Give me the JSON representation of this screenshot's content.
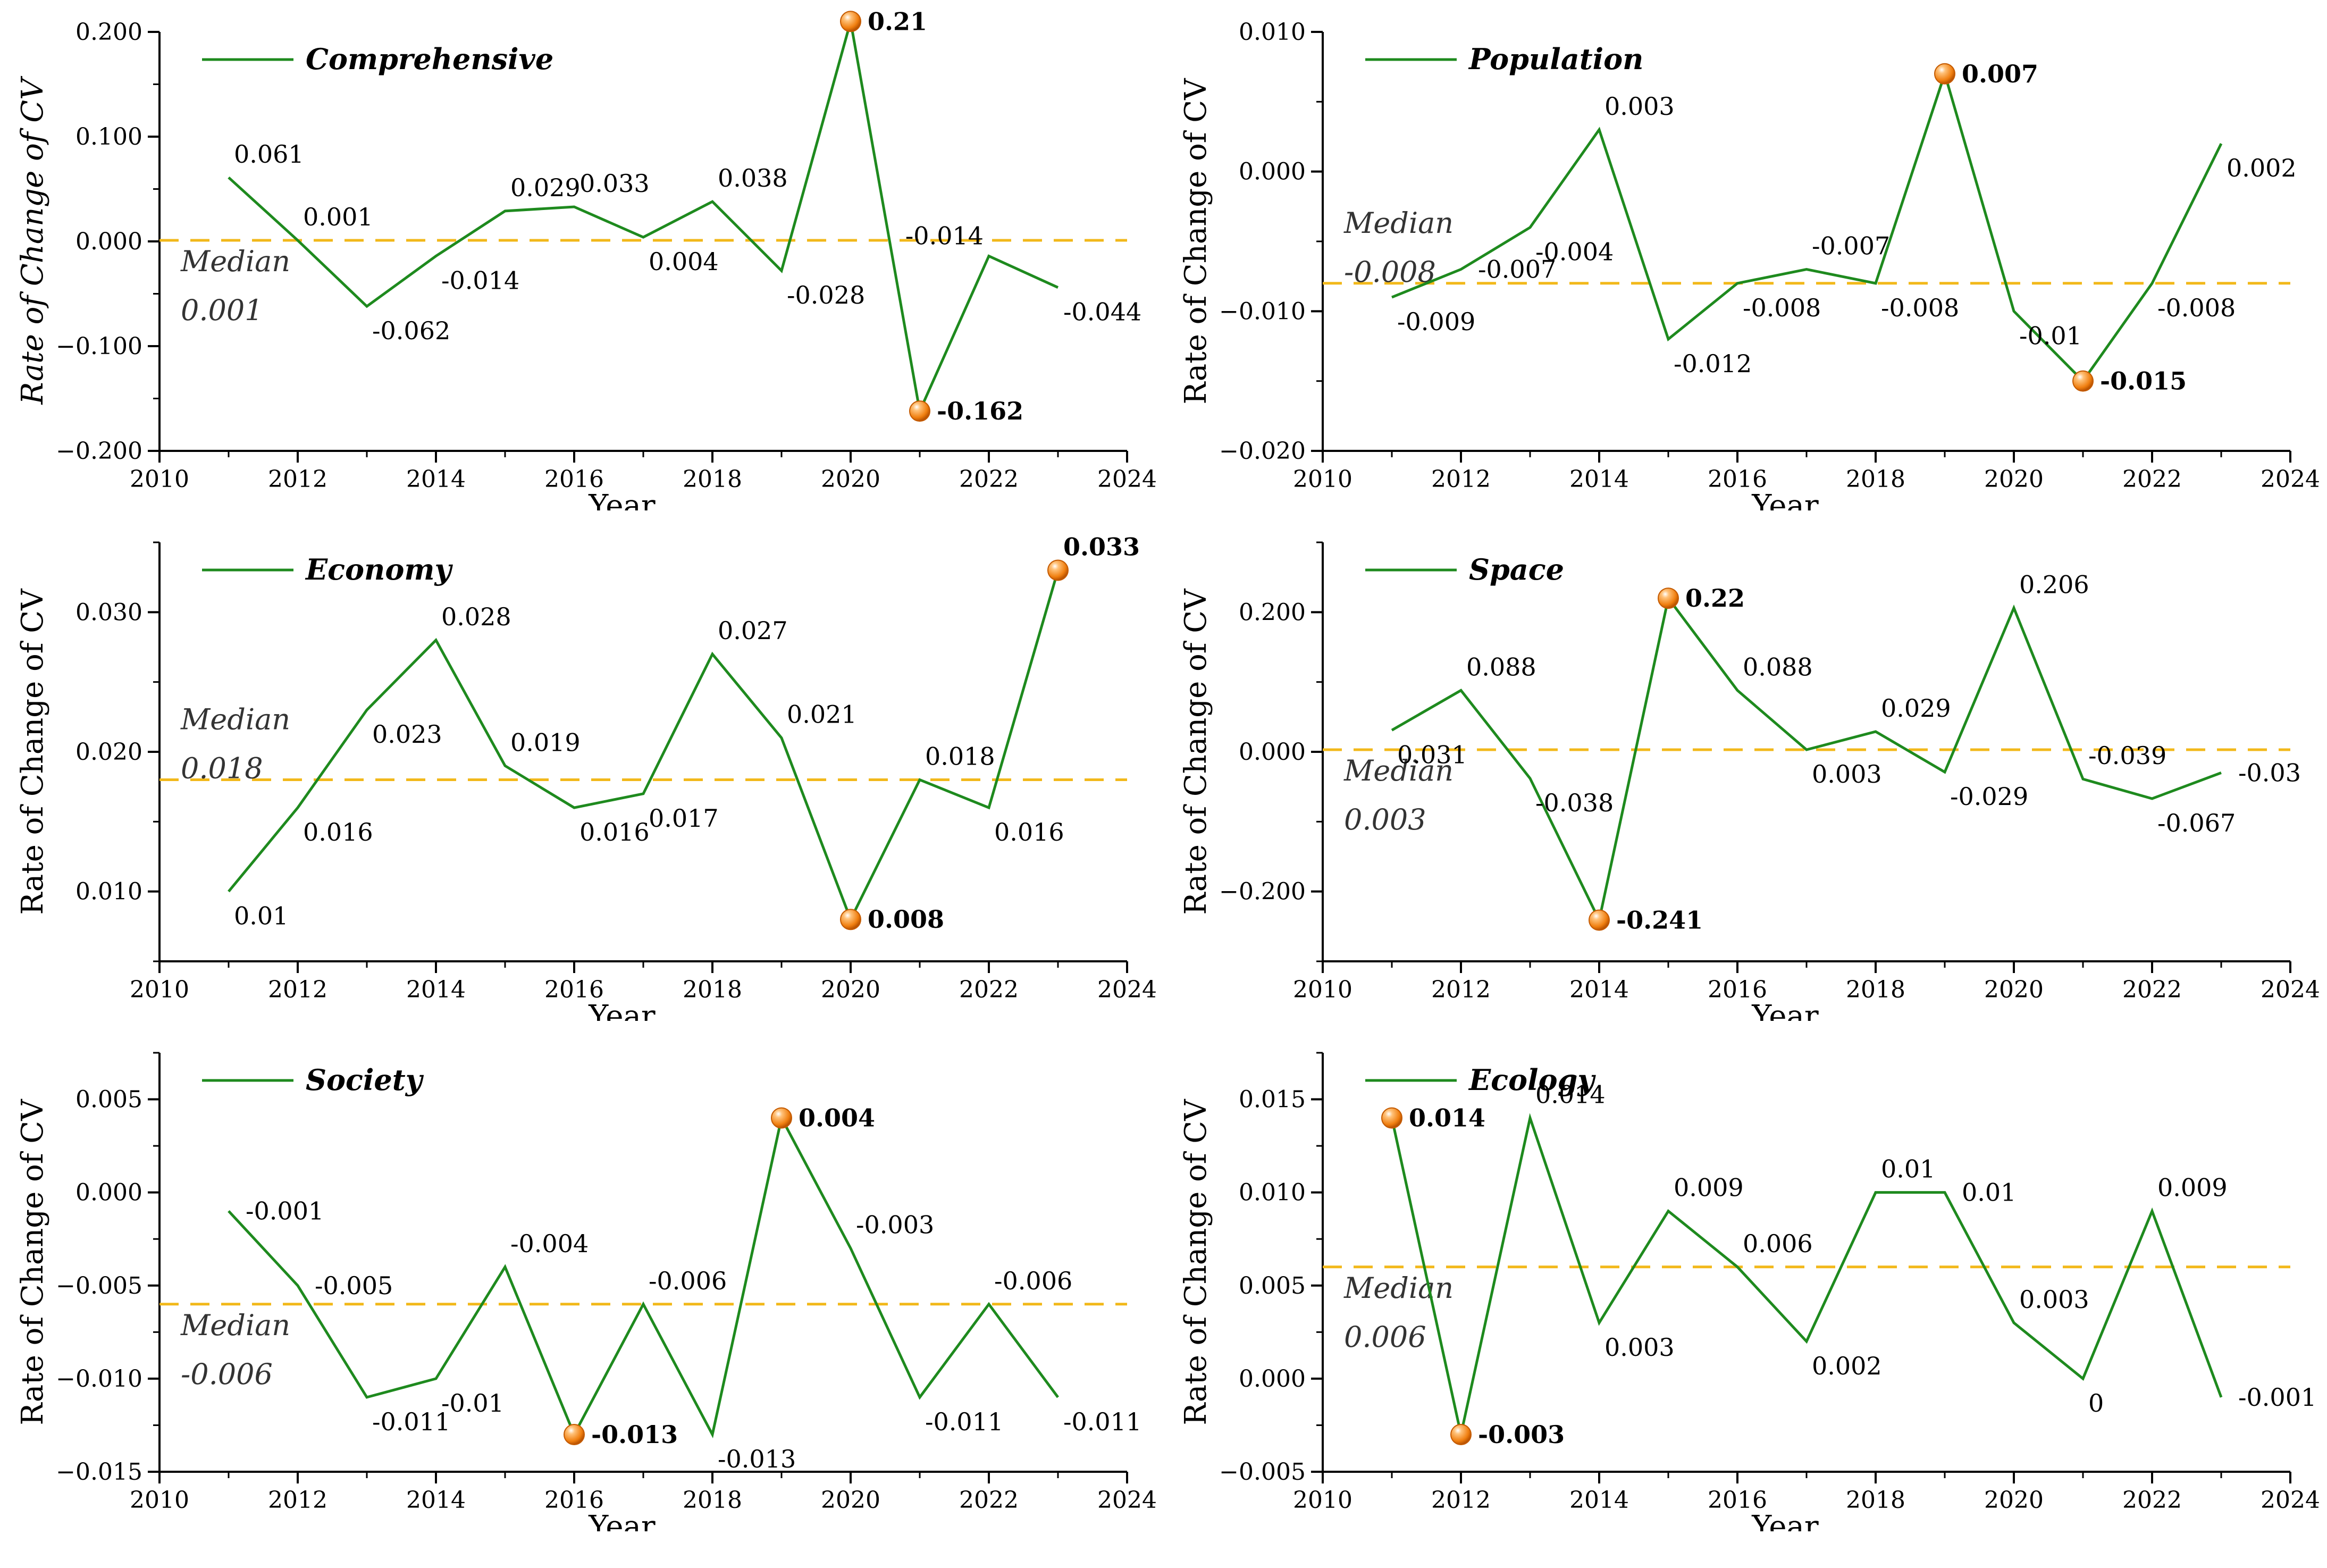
{
  "colors": {
    "line": "#1e8a1e",
    "median": "#f2b81a",
    "marker": "#f07f10",
    "axis": "#000000"
  },
  "chart_data": [
    {
      "type": "line",
      "title": "Comprehensive",
      "xlabel": "Year",
      "ylabel": "Rate of Change of CV",
      "ylabel_italic": true,
      "xlim": [
        2010,
        2024
      ],
      "xticks": [
        2010,
        2012,
        2014,
        2016,
        2018,
        2020,
        2022,
        2024
      ],
      "xtick_labels": [
        "2010",
        "2012",
        "2014",
        "2016",
        "2018",
        "2020",
        "2022",
        "2024"
      ],
      "ylim": [
        -0.2,
        0.2
      ],
      "yticks": [
        -0.2,
        -0.1,
        0.0,
        0.1,
        0.2
      ],
      "ytick_labels": [
        "−0.200",
        "−0.100",
        "0.000",
        "0.100",
        "0.200"
      ],
      "series": [
        {
          "name": "Comprehensive",
          "x": [
            2011,
            2012,
            2013,
            2014,
            2015,
            2016,
            2017,
            2018,
            2019,
            2020,
            2021,
            2022,
            2023
          ],
          "values": [
            0.061,
            0.001,
            -0.062,
            -0.014,
            0.029,
            0.033,
            0.004,
            0.038,
            -0.028,
            0.21,
            -0.162,
            -0.014,
            -0.044
          ]
        }
      ],
      "point_labels": [
        "0.061",
        "0.001",
        "-0.062",
        "-0.014",
        "0.029",
        "0.033",
        "0.004",
        "0.038",
        "-0.028",
        "0.21",
        "-0.162",
        "-0.014",
        "-0.044"
      ],
      "label_positions": [
        "above",
        "above",
        "below",
        "below",
        "above",
        "above",
        "below",
        "above",
        "below",
        "right",
        "right",
        "left",
        "below"
      ],
      "highlight_indices": [
        9,
        10
      ],
      "median": {
        "value": 0.001,
        "label": "Median",
        "value_label": "0.001"
      }
    },
    {
      "type": "line",
      "title": "Population",
      "xlabel": "Year",
      "ylabel": "Rate of Change of CV",
      "ylabel_italic": false,
      "xlim": [
        2010,
        2024
      ],
      "xticks": [
        2010,
        2012,
        2014,
        2016,
        2018,
        2020,
        2022,
        2024
      ],
      "xtick_labels": [
        "2010",
        "2012",
        "2014",
        "2016",
        "2018",
        "2020",
        "2022",
        "2024"
      ],
      "ylim": [
        -0.02,
        0.01
      ],
      "yticks": [
        -0.02,
        -0.01,
        0.0,
        0.01
      ],
      "ytick_labels": [
        "−0.020",
        "−0.010",
        "0.000",
        "0.010"
      ],
      "series": [
        {
          "name": "Population",
          "x": [
            2011,
            2012,
            2013,
            2014,
            2015,
            2016,
            2017,
            2018,
            2019,
            2020,
            2021,
            2022,
            2023
          ],
          "values": [
            -0.009,
            -0.007,
            -0.004,
            0.003,
            -0.012,
            -0.008,
            -0.007,
            -0.008,
            0.007,
            -0.01,
            -0.015,
            -0.008,
            0.002
          ]
        }
      ],
      "point_labels": [
        "-0.009",
        "-0.007",
        "-0.004",
        "0.003",
        "-0.012",
        "-0.008",
        "-0.007",
        "-0.008",
        "0.007",
        "-0.01",
        "-0.015",
        "-0.008",
        "0.002"
      ],
      "label_positions": [
        "below",
        "right",
        "below",
        "above",
        "below",
        "below",
        "above",
        "below",
        "right",
        "below",
        "right",
        "below",
        "below"
      ],
      "highlight_indices": [
        8,
        10
      ],
      "median": {
        "value": -0.008,
        "label": "Median",
        "value_label": "-0.008"
      }
    },
    {
      "type": "line",
      "title": "Economy",
      "xlabel": "Year",
      "ylabel": "Rate of Change of CV",
      "ylabel_italic": false,
      "xlim": [
        2010,
        2024
      ],
      "xticks": [
        2010,
        2012,
        2014,
        2016,
        2018,
        2020,
        2022,
        2024
      ],
      "xtick_labels": [
        "2010",
        "2012",
        "2014",
        "2016",
        "2018",
        "2020",
        "2022",
        "2024"
      ],
      "ylim": [
        0.005,
        0.035
      ],
      "yticks": [
        0.01,
        0.02,
        0.03
      ],
      "ytick_labels": [
        "0.010",
        "0.020",
        "0.030"
      ],
      "series": [
        {
          "name": "Economy",
          "x": [
            2011,
            2012,
            2013,
            2014,
            2015,
            2016,
            2017,
            2018,
            2019,
            2020,
            2021,
            2022,
            2023
          ],
          "values": [
            0.01,
            0.016,
            0.023,
            0.028,
            0.019,
            0.016,
            0.017,
            0.027,
            0.021,
            0.008,
            0.018,
            0.016,
            0.033
          ]
        }
      ],
      "point_labels": [
        "0.01",
        "0.016",
        "0.023",
        "0.028",
        "0.019",
        "0.016",
        "0.017",
        "0.027",
        "0.021",
        "0.008",
        "0.018",
        "0.016",
        "0.033"
      ],
      "label_positions": [
        "below",
        "below",
        "below",
        "above",
        "above",
        "below",
        "below",
        "above",
        "above",
        "right",
        "above",
        "below",
        "above"
      ],
      "highlight_indices": [
        9,
        12
      ],
      "median": {
        "value": 0.018,
        "label": "Median",
        "value_label": "0.018"
      }
    },
    {
      "type": "line",
      "title": "Space",
      "xlabel": "Year",
      "ylabel": "Rate of Change of CV",
      "ylabel_italic": false,
      "xlim": [
        2010,
        2024
      ],
      "xticks": [
        2010,
        2012,
        2014,
        2016,
        2018,
        2020,
        2022,
        2024
      ],
      "xtick_labels": [
        "2010",
        "2012",
        "2014",
        "2016",
        "2018",
        "2020",
        "2022",
        "2024"
      ],
      "ylim": [
        -0.3,
        0.3
      ],
      "yticks": [
        -0.2,
        0.0,
        0.2
      ],
      "ytick_labels": [
        "−0.200",
        "0.000",
        "0.200"
      ],
      "series": [
        {
          "name": "Space",
          "x": [
            2011,
            2012,
            2013,
            2014,
            2015,
            2016,
            2017,
            2018,
            2019,
            2020,
            2021,
            2022,
            2023
          ],
          "values": [
            0.031,
            0.088,
            -0.038,
            -0.241,
            0.22,
            0.088,
            0.003,
            0.029,
            -0.029,
            0.206,
            -0.039,
            -0.067,
            -0.03
          ]
        }
      ],
      "point_labels": [
        "0.031",
        "0.088",
        "-0.038",
        "-0.241",
        "0.22",
        "0.088",
        "0.003",
        "0.029",
        "-0.029",
        "0.206",
        "-0.039",
        "-0.067",
        "-0.03"
      ],
      "label_positions": [
        "below",
        "above",
        "below",
        "right",
        "right",
        "above",
        "below",
        "above",
        "below",
        "above",
        "above",
        "below",
        "right"
      ],
      "highlight_indices": [
        3,
        4
      ],
      "median": {
        "value": 0.003,
        "label": "Median",
        "value_label": "0.003"
      }
    },
    {
      "type": "line",
      "title": "Society",
      "xlabel": "Year",
      "ylabel": "Rate of Change of CV",
      "ylabel_italic": false,
      "xlim": [
        2010,
        2024
      ],
      "xticks": [
        2010,
        2012,
        2014,
        2016,
        2018,
        2020,
        2022,
        2024
      ],
      "xtick_labels": [
        "2010",
        "2012",
        "2014",
        "2016",
        "2018",
        "2020",
        "2022",
        "2024"
      ],
      "ylim": [
        -0.015,
        0.0075
      ],
      "yticks": [
        -0.015,
        -0.01,
        -0.005,
        0.0,
        0.005
      ],
      "ytick_labels": [
        "−0.015",
        "−0.010",
        "−0.005",
        "0.000",
        "0.005"
      ],
      "series": [
        {
          "name": "Society",
          "x": [
            2011,
            2012,
            2013,
            2014,
            2015,
            2016,
            2017,
            2018,
            2019,
            2020,
            2021,
            2022,
            2023
          ],
          "values": [
            -0.001,
            -0.005,
            -0.011,
            -0.01,
            -0.004,
            -0.013,
            -0.006,
            -0.013,
            0.004,
            -0.003,
            -0.011,
            -0.006,
            -0.011
          ]
        }
      ],
      "point_labels": [
        "-0.001",
        "-0.005",
        "-0.011",
        "-0.01",
        "-0.004",
        "-0.013",
        "-0.006",
        "-0.013",
        "0.004",
        "-0.003",
        "-0.011",
        "-0.006",
        "-0.011"
      ],
      "label_positions": [
        "right",
        "right",
        "below",
        "below",
        "above",
        "right",
        "above",
        "below",
        "right",
        "above",
        "below",
        "above",
        "below"
      ],
      "highlight_indices": [
        5,
        8
      ],
      "median": {
        "value": -0.006,
        "label": "Median",
        "value_label": "-0.006"
      }
    },
    {
      "type": "line",
      "title": "Ecology",
      "xlabel": "Year",
      "ylabel": "Rate of Change of CV",
      "ylabel_italic": false,
      "xlim": [
        2010,
        2024
      ],
      "xticks": [
        2010,
        2012,
        2014,
        2016,
        2018,
        2020,
        2022,
        2024
      ],
      "xtick_labels": [
        "2010",
        "2012",
        "2014",
        "2016",
        "2018",
        "2020",
        "2022",
        "2024"
      ],
      "ylim": [
        -0.005,
        0.0175
      ],
      "yticks": [
        -0.005,
        0.0,
        0.005,
        0.01,
        0.015
      ],
      "ytick_labels": [
        "−0.005",
        "0.000",
        "0.005",
        "0.010",
        "0.015"
      ],
      "series": [
        {
          "name": "Ecology",
          "x": [
            2011,
            2012,
            2013,
            2014,
            2015,
            2016,
            2017,
            2018,
            2019,
            2020,
            2021,
            2022,
            2023
          ],
          "values": [
            0.014,
            -0.003,
            0.014,
            0.003,
            0.009,
            0.006,
            0.002,
            0.01,
            0.01,
            0.003,
            0.0,
            0.009,
            -0.001
          ]
        }
      ],
      "point_labels": [
        "0.014",
        "-0.003",
        "0.014",
        "0.003",
        "0.009",
        "0.006",
        "0.002",
        "0.01",
        "0.01",
        "0.003",
        "0",
        "0.009",
        "-0.001"
      ],
      "label_positions": [
        "right",
        "right",
        "above",
        "below",
        "above",
        "above",
        "below",
        "above",
        "right",
        "above",
        "below",
        "above",
        "right"
      ],
      "highlight_indices": [
        0,
        1
      ],
      "median": {
        "value": 0.006,
        "label": "Median",
        "value_label": "0.006"
      }
    }
  ]
}
